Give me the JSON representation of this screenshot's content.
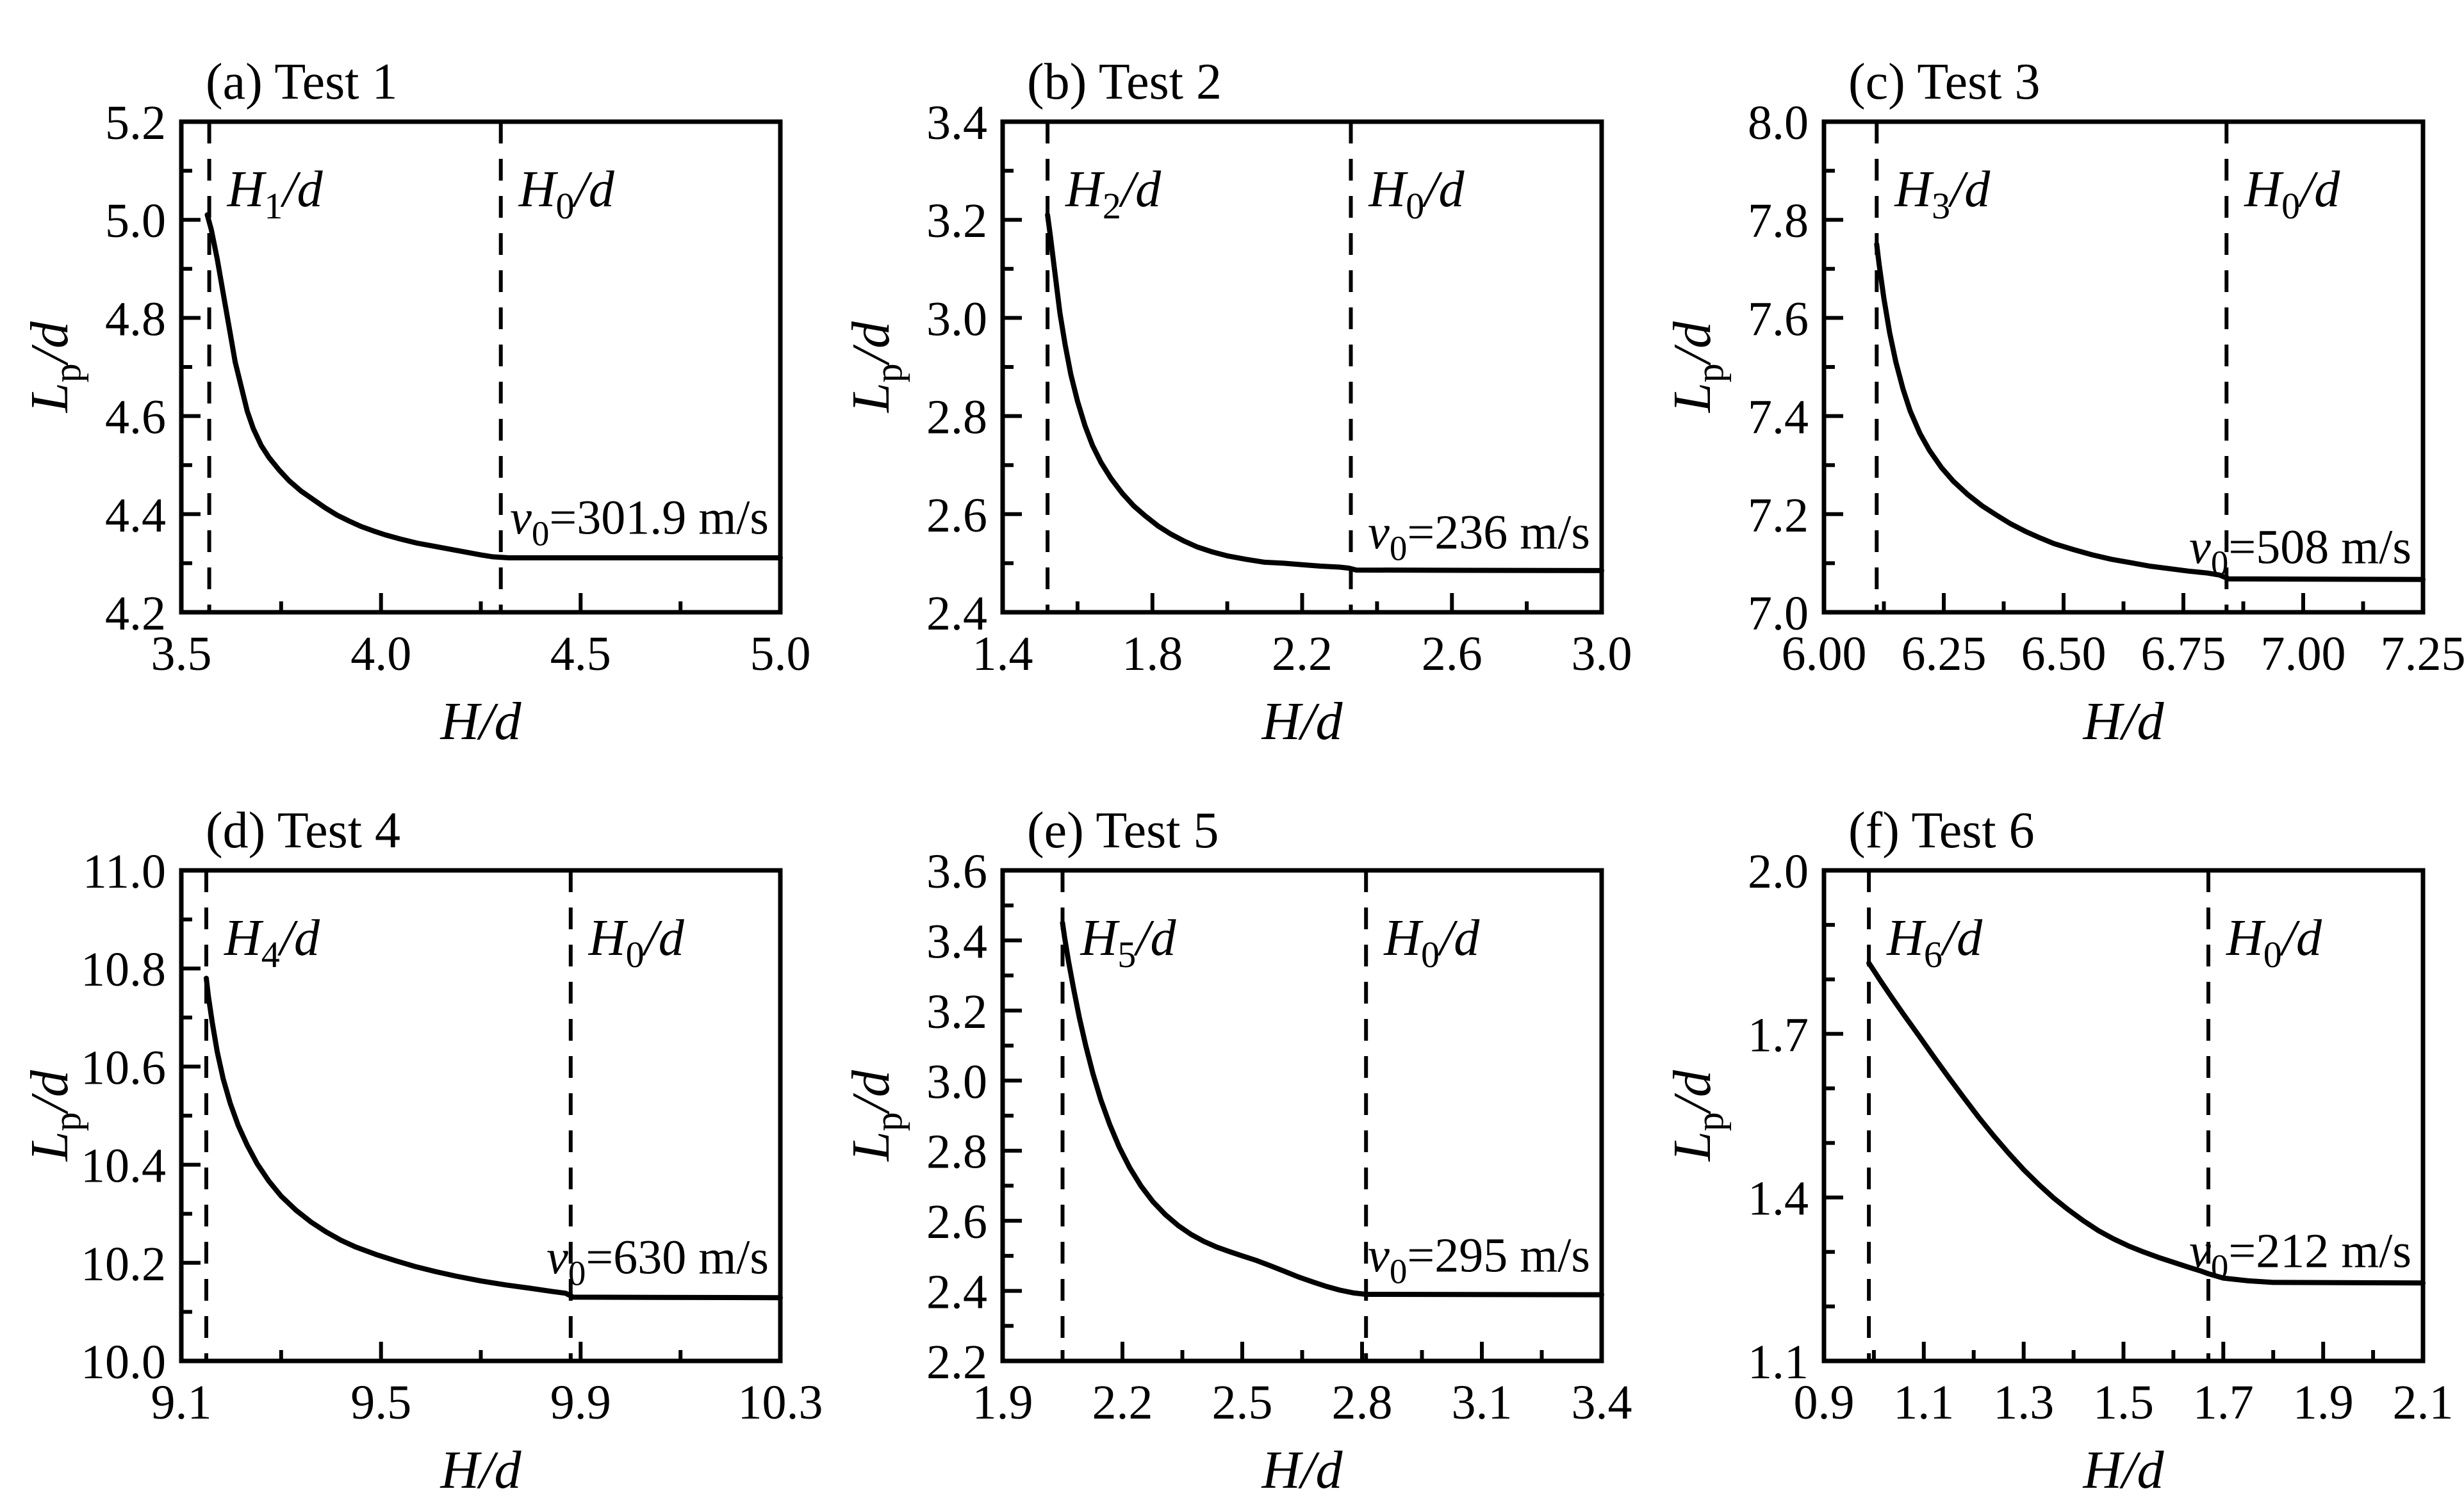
{
  "figure": {
    "background": "#ffffff",
    "ink": "#000000"
  },
  "chart_data": [
    {
      "id": "a",
      "type": "line",
      "title": "(a) Test 1",
      "xlabel": "H/d",
      "ylabel": {
        "pre": "L",
        "sub": "p",
        "post": "/d"
      },
      "xlim": [
        3.5,
        5.0
      ],
      "ylim": [
        4.2,
        5.2
      ],
      "grid": false,
      "legend": "none",
      "xticks": {
        "vals": [
          3.5,
          4.0,
          4.5,
          5.0
        ],
        "labels": [
          "3.5",
          "4.0",
          "4.5",
          "5.0"
        ],
        "minor": [
          3.75,
          4.25,
          4.75
        ]
      },
      "yticks": {
        "vals": [
          4.2,
          4.4,
          4.6,
          4.8,
          5.0,
          5.2
        ],
        "labels": [
          "4.2",
          "4.4",
          "4.6",
          "4.8",
          "5.0",
          "5.2"
        ],
        "minor": [
          4.3,
          4.5,
          4.7,
          4.9,
          5.1
        ]
      },
      "vlines": [
        {
          "x": 3.57,
          "label": {
            "pre": "H",
            "sub": "1",
            "post": "/d"
          }
        },
        {
          "x": 4.3,
          "label": {
            "pre": "H",
            "sub": "0",
            "post": "/d"
          }
        }
      ],
      "annotation": {
        "pre": "v",
        "sub": "0",
        "post": "=301.9 m/s",
        "baseline_y": 4.36
      },
      "series": [
        [
          3.565,
          5.01
        ],
        [
          3.575,
          4.98
        ],
        [
          3.59,
          4.92
        ],
        [
          3.605,
          4.85
        ],
        [
          3.62,
          4.78
        ],
        [
          3.635,
          4.71
        ],
        [
          3.65,
          4.66
        ],
        [
          3.665,
          4.61
        ],
        [
          3.68,
          4.575
        ],
        [
          3.7,
          4.54
        ],
        [
          3.72,
          4.515
        ],
        [
          3.745,
          4.49
        ],
        [
          3.77,
          4.468
        ],
        [
          3.8,
          4.447
        ],
        [
          3.83,
          4.43
        ],
        [
          3.86,
          4.413
        ],
        [
          3.89,
          4.398
        ],
        [
          3.92,
          4.386
        ],
        [
          3.95,
          4.375
        ],
        [
          3.98,
          4.366
        ],
        [
          4.01,
          4.358
        ],
        [
          4.05,
          4.349
        ],
        [
          4.09,
          4.341
        ],
        [
          4.13,
          4.335
        ],
        [
          4.17,
          4.329
        ],
        [
          4.21,
          4.323
        ],
        [
          4.25,
          4.317
        ],
        [
          4.28,
          4.313
        ],
        [
          4.32,
          4.311
        ],
        [
          5.0,
          4.311
        ]
      ]
    },
    {
      "id": "b",
      "type": "line",
      "title": "(b) Test 2",
      "xlabel": "H/d",
      "ylabel": {
        "pre": "L",
        "sub": "p",
        "post": "/d"
      },
      "xlim": [
        1.4,
        3.0
      ],
      "ylim": [
        2.4,
        3.4
      ],
      "grid": false,
      "legend": "none",
      "xticks": {
        "vals": [
          1.4,
          1.8,
          2.2,
          2.6,
          3.0
        ],
        "labels": [
          "1.4",
          "1.8",
          "2.2",
          "2.6",
          "3.0"
        ],
        "minor": [
          1.6,
          2.0,
          2.4,
          2.8
        ]
      },
      "yticks": {
        "vals": [
          2.4,
          2.6,
          2.8,
          3.0,
          3.2,
          3.4
        ],
        "labels": [
          "2.4",
          "2.6",
          "2.8",
          "3.0",
          "3.2",
          "3.4"
        ],
        "minor": [
          2.5,
          2.7,
          2.9,
          3.1,
          3.3
        ]
      },
      "vlines": [
        {
          "x": 1.52,
          "label": {
            "pre": "H",
            "sub": "2",
            "post": "/d"
          }
        },
        {
          "x": 2.33,
          "label": {
            "pre": "H",
            "sub": "0",
            "post": "/d"
          }
        }
      ],
      "annotation": {
        "pre": "v",
        "sub": "0",
        "post": "=236 m/s",
        "baseline_y": 2.53
      },
      "series": [
        [
          1.52,
          3.21
        ],
        [
          1.527,
          3.17
        ],
        [
          1.54,
          3.09
        ],
        [
          1.553,
          3.01
        ],
        [
          1.567,
          2.945
        ],
        [
          1.582,
          2.885
        ],
        [
          1.6,
          2.83
        ],
        [
          1.62,
          2.78
        ],
        [
          1.64,
          2.74
        ],
        [
          1.663,
          2.705
        ],
        [
          1.69,
          2.672
        ],
        [
          1.72,
          2.642
        ],
        [
          1.75,
          2.617
        ],
        [
          1.78,
          2.597
        ],
        [
          1.815,
          2.576
        ],
        [
          1.85,
          2.559
        ],
        [
          1.885,
          2.545
        ],
        [
          1.92,
          2.533
        ],
        [
          1.96,
          2.523
        ],
        [
          2.0,
          2.515
        ],
        [
          2.05,
          2.508
        ],
        [
          2.1,
          2.502
        ],
        [
          2.15,
          2.5
        ],
        [
          2.2,
          2.497
        ],
        [
          2.25,
          2.494
        ],
        [
          2.3,
          2.492
        ],
        [
          2.325,
          2.49
        ],
        [
          2.345,
          2.486
        ],
        [
          3.0,
          2.485
        ]
      ]
    },
    {
      "id": "c",
      "type": "line",
      "title": "(c) Test 3",
      "xlabel": "H/d",
      "ylabel": {
        "pre": "L",
        "sub": "p",
        "post": "/d"
      },
      "xlim": [
        6.0,
        7.25
      ],
      "ylim": [
        7.0,
        8.0
      ],
      "grid": false,
      "legend": "none",
      "xticks": {
        "vals": [
          6.0,
          6.25,
          6.5,
          6.75,
          7.0,
          7.25
        ],
        "labels": [
          "6.00",
          "6.25",
          "6.50",
          "6.75",
          "7.00",
          "7.25"
        ],
        "minor": [
          6.125,
          6.375,
          6.625,
          6.875,
          7.125
        ]
      },
      "yticks": {
        "vals": [
          7.0,
          7.2,
          7.4,
          7.6,
          7.8,
          8.0
        ],
        "labels": [
          "7.0",
          "7.2",
          "7.4",
          "7.6",
          "7.8",
          "8.0"
        ],
        "minor": [
          7.1,
          7.3,
          7.5,
          7.7,
          7.9
        ]
      },
      "vlines": [
        {
          "x": 6.11,
          "label": {
            "pre": "H",
            "sub": "3",
            "post": "/d"
          }
        },
        {
          "x": 6.84,
          "label": {
            "pre": "H",
            "sub": "0",
            "post": "/d"
          }
        }
      ],
      "annotation": {
        "pre": "v",
        "sub": "0",
        "post": "=508 m/s",
        "baseline_y": 7.1
      },
      "series": [
        [
          6.11,
          7.75
        ],
        [
          6.115,
          7.71
        ],
        [
          6.125,
          7.64
        ],
        [
          6.137,
          7.57
        ],
        [
          6.15,
          7.51
        ],
        [
          6.165,
          7.455
        ],
        [
          6.18,
          7.41
        ],
        [
          6.2,
          7.365
        ],
        [
          6.22,
          7.33
        ],
        [
          6.245,
          7.295
        ],
        [
          6.27,
          7.267
        ],
        [
          6.3,
          7.24
        ],
        [
          6.33,
          7.217
        ],
        [
          6.36,
          7.198
        ],
        [
          6.39,
          7.18
        ],
        [
          6.42,
          7.165
        ],
        [
          6.45,
          7.152
        ],
        [
          6.48,
          7.14
        ],
        [
          6.52,
          7.128
        ],
        [
          6.56,
          7.117
        ],
        [
          6.6,
          7.108
        ],
        [
          6.64,
          7.101
        ],
        [
          6.68,
          7.094
        ],
        [
          6.72,
          7.089
        ],
        [
          6.76,
          7.084
        ],
        [
          6.8,
          7.08
        ],
        [
          6.825,
          7.076
        ],
        [
          6.845,
          7.068
        ],
        [
          7.25,
          7.067
        ]
      ]
    },
    {
      "id": "d",
      "type": "line",
      "title": "(d) Test 4",
      "xlabel": "H/d",
      "ylabel": {
        "pre": "L",
        "sub": "p",
        "post": "/d"
      },
      "xlim": [
        9.1,
        10.3
      ],
      "ylim": [
        10.0,
        11.0
      ],
      "grid": false,
      "legend": "none",
      "xticks": {
        "vals": [
          9.1,
          9.5,
          9.9,
          10.3
        ],
        "labels": [
          "9.1",
          "9.5",
          "9.9",
          "10.3"
        ],
        "minor": [
          9.3,
          9.7,
          10.1
        ]
      },
      "yticks": {
        "vals": [
          10.0,
          10.2,
          10.4,
          10.6,
          10.8,
          11.0
        ],
        "labels": [
          "10.0",
          "10.2",
          "10.4",
          "10.6",
          "10.8",
          "11.0"
        ],
        "minor": [
          10.1,
          10.3,
          10.5,
          10.7,
          10.9
        ]
      },
      "vlines": [
        {
          "x": 9.15,
          "label": {
            "pre": "H",
            "sub": "4",
            "post": "/d"
          }
        },
        {
          "x": 9.88,
          "label": {
            "pre": "H",
            "sub": "0",
            "post": "/d"
          }
        }
      ],
      "annotation": {
        "pre": "v",
        "sub": "0",
        "post": "=630 m/s",
        "baseline_y": 10.178
      },
      "series": [
        [
          9.15,
          10.78
        ],
        [
          9.154,
          10.745
        ],
        [
          9.162,
          10.69
        ],
        [
          9.172,
          10.63
        ],
        [
          9.184,
          10.575
        ],
        [
          9.198,
          10.525
        ],
        [
          9.214,
          10.48
        ],
        [
          9.232,
          10.44
        ],
        [
          9.252,
          10.402
        ],
        [
          9.275,
          10.367
        ],
        [
          9.3,
          10.336
        ],
        [
          9.33,
          10.307
        ],
        [
          9.36,
          10.283
        ],
        [
          9.39,
          10.263
        ],
        [
          9.42,
          10.246
        ],
        [
          9.45,
          10.232
        ],
        [
          9.49,
          10.217
        ],
        [
          9.53,
          10.204
        ],
        [
          9.57,
          10.192
        ],
        [
          9.61,
          10.182
        ],
        [
          9.65,
          10.173
        ],
        [
          9.7,
          10.163
        ],
        [
          9.75,
          10.155
        ],
        [
          9.8,
          10.148
        ],
        [
          9.84,
          10.142
        ],
        [
          9.87,
          10.138
        ],
        [
          9.885,
          10.13
        ],
        [
          10.3,
          10.129
        ]
      ]
    },
    {
      "id": "e",
      "type": "line",
      "title": "(e) Test 5",
      "xlabel": "H/d",
      "ylabel": {
        "pre": "L",
        "sub": "p",
        "post": "/d"
      },
      "xlim": [
        1.9,
        3.4
      ],
      "ylim": [
        2.2,
        3.6
      ],
      "grid": false,
      "legend": "none",
      "xticks": {
        "vals": [
          1.9,
          2.2,
          2.5,
          2.8,
          3.1,
          3.4
        ],
        "labels": [
          "1.9",
          "2.2",
          "2.5",
          "2.8",
          "3.1",
          "3.4"
        ],
        "minor": [
          2.05,
          2.35,
          2.65,
          2.95,
          3.25
        ]
      },
      "yticks": {
        "vals": [
          2.2,
          2.4,
          2.6,
          2.8,
          3.0,
          3.2,
          3.4,
          3.6
        ],
        "labels": [
          "2.2",
          "2.4",
          "2.6",
          "2.8",
          "3.0",
          "3.2",
          "3.4",
          "3.6"
        ],
        "minor": [
          2.3,
          2.5,
          2.7,
          2.9,
          3.1,
          3.3,
          3.5
        ]
      },
      "vlines": [
        {
          "x": 2.05,
          "label": {
            "pre": "H",
            "sub": "5",
            "post": "/d"
          }
        },
        {
          "x": 2.81,
          "label": {
            "pre": "H",
            "sub": "0",
            "post": "/d"
          }
        }
      ],
      "annotation": {
        "pre": "v",
        "sub": "0",
        "post": "=295 m/s",
        "baseline_y": 2.455
      },
      "series": [
        [
          2.05,
          3.45
        ],
        [
          2.055,
          3.41
        ],
        [
          2.065,
          3.34
        ],
        [
          2.078,
          3.26
        ],
        [
          2.092,
          3.18
        ],
        [
          2.108,
          3.1
        ],
        [
          2.126,
          3.02
        ],
        [
          2.146,
          2.945
        ],
        [
          2.168,
          2.875
        ],
        [
          2.192,
          2.81
        ],
        [
          2.218,
          2.752
        ],
        [
          2.246,
          2.7
        ],
        [
          2.276,
          2.655
        ],
        [
          2.308,
          2.617
        ],
        [
          2.34,
          2.586
        ],
        [
          2.372,
          2.561
        ],
        [
          2.404,
          2.541
        ],
        [
          2.436,
          2.525
        ],
        [
          2.468,
          2.512
        ],
        [
          2.5,
          2.5
        ],
        [
          2.535,
          2.487
        ],
        [
          2.57,
          2.472
        ],
        [
          2.605,
          2.456
        ],
        [
          2.64,
          2.44
        ],
        [
          2.675,
          2.426
        ],
        [
          2.71,
          2.413
        ],
        [
          2.745,
          2.402
        ],
        [
          2.78,
          2.394
        ],
        [
          2.81,
          2.39
        ],
        [
          3.4,
          2.389
        ]
      ]
    },
    {
      "id": "f",
      "type": "line",
      "title": "(f) Test 6",
      "xlabel": "H/d",
      "ylabel": {
        "pre": "L",
        "sub": "p",
        "post": "/d"
      },
      "xlim": [
        0.9,
        2.1
      ],
      "ylim": [
        1.1,
        2.0
      ],
      "grid": false,
      "legend": "none",
      "xticks": {
        "vals": [
          0.9,
          1.1,
          1.3,
          1.5,
          1.7,
          1.9,
          2.1
        ],
        "labels": [
          "0.9",
          "1.1",
          "1.3",
          "1.5",
          "1.7",
          "1.9",
          "2.1"
        ],
        "minor": [
          1.0,
          1.2,
          1.4,
          1.6,
          1.8,
          2.0
        ]
      },
      "yticks": {
        "vals": [
          1.1,
          1.4,
          1.7,
          2.0
        ],
        "labels": [
          "1.1",
          "1.4",
          "1.7",
          "2.0"
        ],
        "minor": [
          1.2,
          1.3,
          1.5,
          1.6,
          1.8,
          1.9
        ]
      },
      "vlines": [
        {
          "x": 0.99,
          "label": {
            "pre": "H",
            "sub": "6",
            "post": "/d"
          }
        },
        {
          "x": 1.67,
          "label": {
            "pre": "H",
            "sub": "0",
            "post": "/d"
          }
        }
      ],
      "annotation": {
        "pre": "v",
        "sub": "0",
        "post": "=212 m/s",
        "baseline_y": 1.272
      },
      "series": [
        [
          0.99,
          1.83
        ],
        [
          1.0,
          1.816
        ],
        [
          1.015,
          1.795
        ],
        [
          1.035,
          1.768
        ],
        [
          1.06,
          1.735
        ],
        [
          1.09,
          1.697
        ],
        [
          1.12,
          1.658
        ],
        [
          1.15,
          1.62
        ],
        [
          1.18,
          1.583
        ],
        [
          1.21,
          1.547
        ],
        [
          1.24,
          1.513
        ],
        [
          1.27,
          1.481
        ],
        [
          1.3,
          1.451
        ],
        [
          1.33,
          1.424
        ],
        [
          1.36,
          1.399
        ],
        [
          1.39,
          1.377
        ],
        [
          1.42,
          1.357
        ],
        [
          1.45,
          1.339
        ],
        [
          1.48,
          1.324
        ],
        [
          1.51,
          1.311
        ],
        [
          1.54,
          1.3
        ],
        [
          1.57,
          1.29
        ],
        [
          1.6,
          1.281
        ],
        [
          1.63,
          1.272
        ],
        [
          1.655,
          1.265
        ],
        [
          1.67,
          1.26
        ],
        [
          1.7,
          1.252
        ],
        [
          1.75,
          1.247
        ],
        [
          1.8,
          1.244
        ],
        [
          2.1,
          1.243
        ]
      ]
    }
  ]
}
